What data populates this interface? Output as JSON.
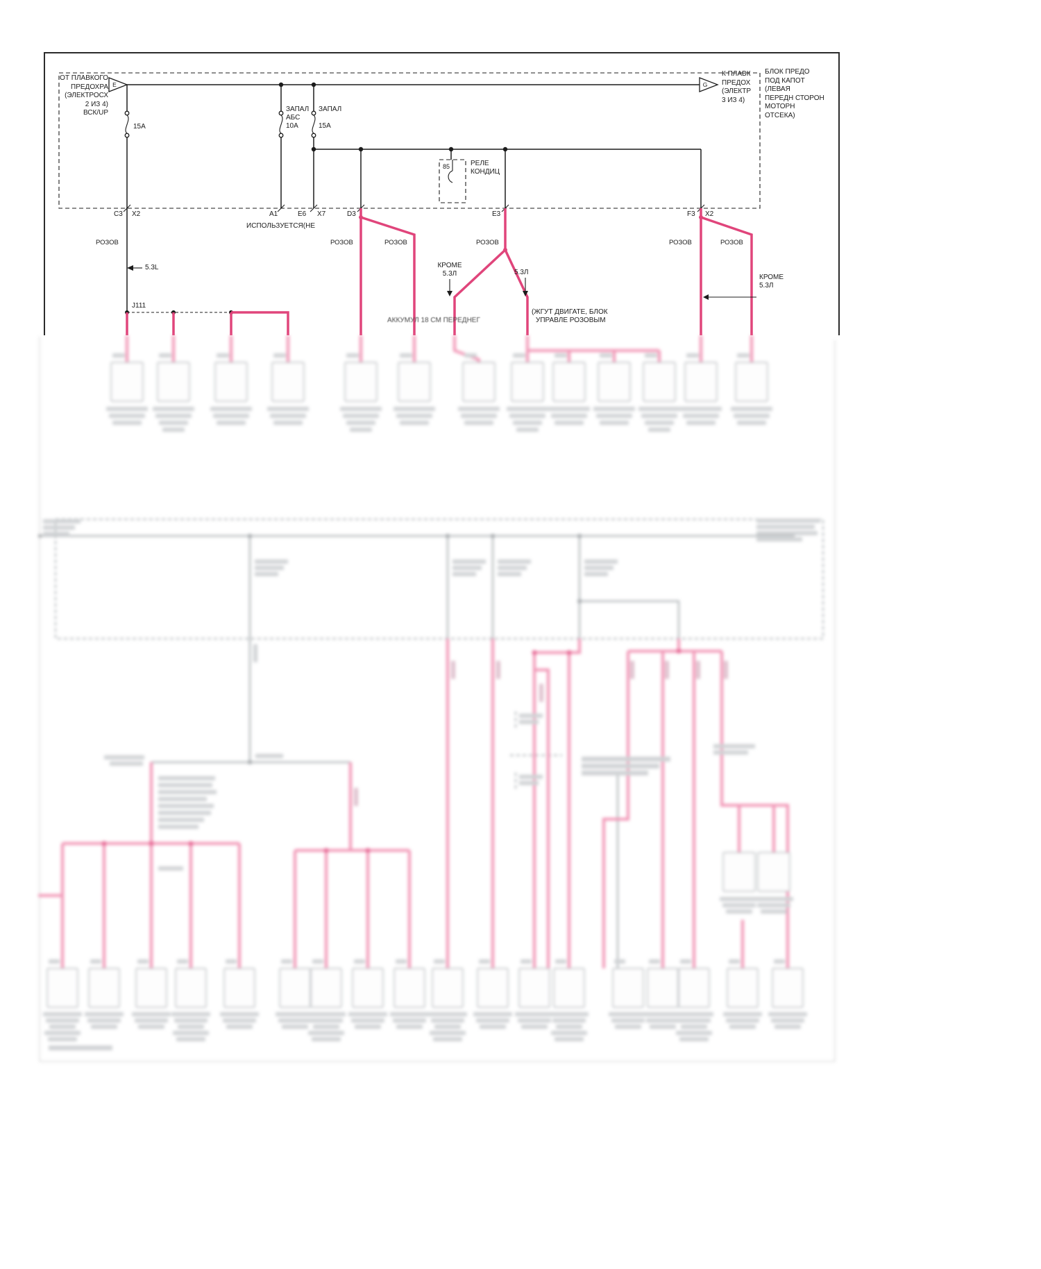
{
  "colors": {
    "wire_pink": "#e0457b",
    "wire_pink_blur": "#ee7da4",
    "line": "#1c1c1c"
  },
  "fuse_block": {
    "title_lines": [
      "БЛОК ПРЕДО",
      "ПОД КАПОТ",
      "(ЛЕВАЯ",
      "ПЕРЕДН СТОРОН",
      "МОТОРН",
      "ОТСЕКА)"
    ],
    "source_lines": [
      "ОТ ПЛАВКОГО",
      "ПРЕДОХРА",
      "(ЭЛЕКТРОСХ",
      "2 ИЗ 4)",
      "ВСК/UP"
    ],
    "source_arrow": "E",
    "dest_arrow": "G",
    "dest_lines": [
      "К ПЛАВК",
      "ПРЕДОХ",
      "(ЭЛЕКТР",
      "3 ИЗ 4)"
    ],
    "fuse1_rating": "15A",
    "fuse2_name1": "ЗАПАЛ",
    "fuse2_name2": "АБС",
    "fuse2_rating": "10А",
    "fuse3_name": "ЗАПАЛ",
    "fuse3_rating": "15А",
    "relay_pin": "85",
    "relay_name1": "РЕЛЕ",
    "relay_name2": "КОНДИЦ",
    "exit1_left": "C3",
    "exit1_right": "X2",
    "exit2": "A1",
    "exit3_left": "E6",
    "exit3_right": "X7",
    "exit4": "D3",
    "exit5": "E3",
    "exit6_left": "F3",
    "exit6_right": "X2",
    "not_used": "ИСПОЛЬЗУЕТСЯ(НЕ"
  },
  "wires": {
    "pink_label": "РОЗОВ",
    "splice": "J111",
    "size_53l": "5.3L",
    "except_line1": "КРОМЕ",
    "except_line2": "5.3Л",
    "only_53l": "5.3Л",
    "note_accum": "АККУМУЛ 18 СМ ПЕРЕДНЕГ",
    "note_harness1": "(ЖГУТ ДВИГАТЕ, БЛОК",
    "note_harness2": "УПРАВЛЕ РОЗОВЫМ"
  }
}
